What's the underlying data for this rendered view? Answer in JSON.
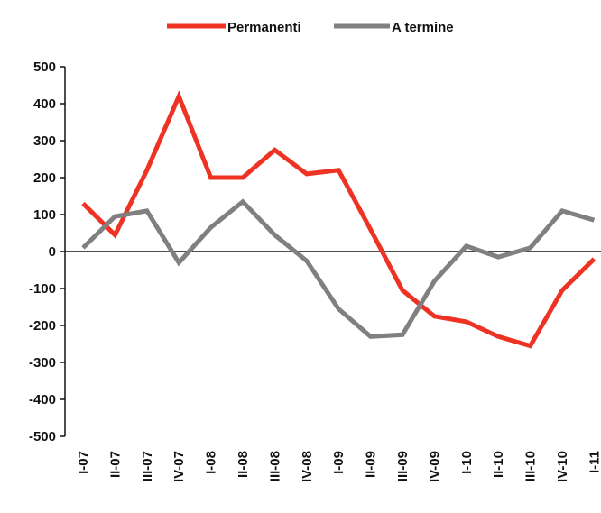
{
  "chart_data": {
    "type": "line",
    "title": "",
    "xlabel": "",
    "ylabel": "",
    "categories": [
      "I-07",
      "II-07",
      "III-07",
      "IV-07",
      "I-08",
      "II-08",
      "III-08",
      "IV-08",
      "I-09",
      "II-09",
      "III-09",
      "IV-09",
      "I-10",
      "II-10",
      "III-10",
      "IV-10",
      "I-11"
    ],
    "ylim": [
      -500,
      500
    ],
    "yticks": [
      500,
      400,
      300,
      200,
      100,
      0,
      -100,
      -200,
      -300,
      -400,
      -500
    ],
    "grid": false,
    "legend_position": "top-center",
    "series": [
      {
        "name": "Permanenti",
        "color": "#ee3224",
        "values": [
          130,
          45,
          220,
          420,
          200,
          200,
          275,
          210,
          220,
          60,
          -105,
          -175,
          -190,
          -230,
          -255,
          -105,
          -20
        ]
      },
      {
        "name": "A termine",
        "color": "#808080",
        "values": [
          10,
          95,
          110,
          -30,
          65,
          135,
          45,
          -25,
          -155,
          -230,
          -225,
          -80,
          15,
          -15,
          10,
          110,
          85
        ]
      }
    ]
  }
}
